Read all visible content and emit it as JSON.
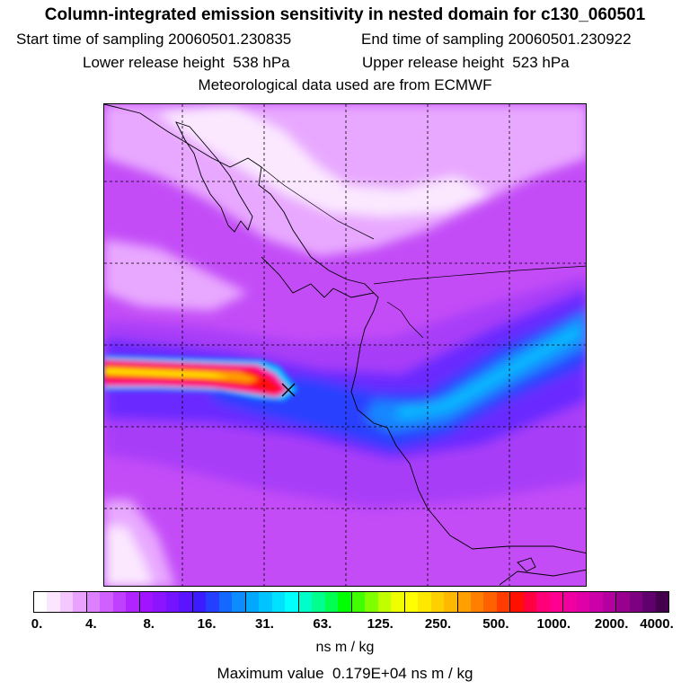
{
  "header": {
    "title": "Column-integrated emission sensitivity in nested domain for c130_060501",
    "start_label": "Start time of sampling",
    "start_value": "20060501.230835",
    "end_label": "End time of sampling",
    "end_value": "20060501.230922",
    "lower_label": "Lower release height",
    "lower_value": "538 hPa",
    "upper_label": "Upper release height",
    "upper_value": "523 hPa",
    "met_text": "Meteorological data used are from ECMWF"
  },
  "colorbar": {
    "tick_labels": [
      "0.",
      "4.",
      "8.",
      "16.",
      "31.",
      "63.",
      "125.",
      "250.",
      "500.",
      "1000.",
      "2000.",
      "4000."
    ],
    "colors": [
      "#ffffff",
      "#fbe6ff",
      "#f4c8ff",
      "#e9a3ff",
      "#dc80ff",
      "#d060ff",
      "#c040ff",
      "#b024ff",
      "#a014ff",
      "#8c14ff",
      "#7414ff",
      "#5a14ff",
      "#3c1cff",
      "#2440ff",
      "#1468ff",
      "#0c8cff",
      "#00a8ff",
      "#00c4ff",
      "#00e0ff",
      "#00ffff",
      "#00ffc8",
      "#00ff8c",
      "#00ff50",
      "#00ff00",
      "#40ff00",
      "#80ff00",
      "#c0ff00",
      "#f0ff00",
      "#ffff00",
      "#ffe800",
      "#ffd000",
      "#ffb800",
      "#ffa000",
      "#ff8000",
      "#ff6000",
      "#ff3c00",
      "#ff1000",
      "#ff0040",
      "#ff0078",
      "#ff0090",
      "#f000a0",
      "#e000a8",
      "#cc00a8",
      "#b400a0",
      "#980090",
      "#7c0080",
      "#60006c",
      "#44004c"
    ],
    "unit": "ns m / kg"
  },
  "footer": {
    "max_label": "Maximum value",
    "max_value": "0.179E+04 ns m / kg"
  },
  "map_colors": {
    "base": "#c34cf7",
    "light": "#e8a8ff",
    "white": "#fbe8ff",
    "violet": "#a83cf8",
    "blue_violet": "#6a2cff",
    "blue": "#2c40ff",
    "azure": "#1488ff",
    "cyan": "#00c0ff",
    "plume_red": "#ff1010",
    "plume_orange": "#ff9c00",
    "plume_yellow": "#ffff00",
    "plume_magenta": "#ff0098"
  }
}
